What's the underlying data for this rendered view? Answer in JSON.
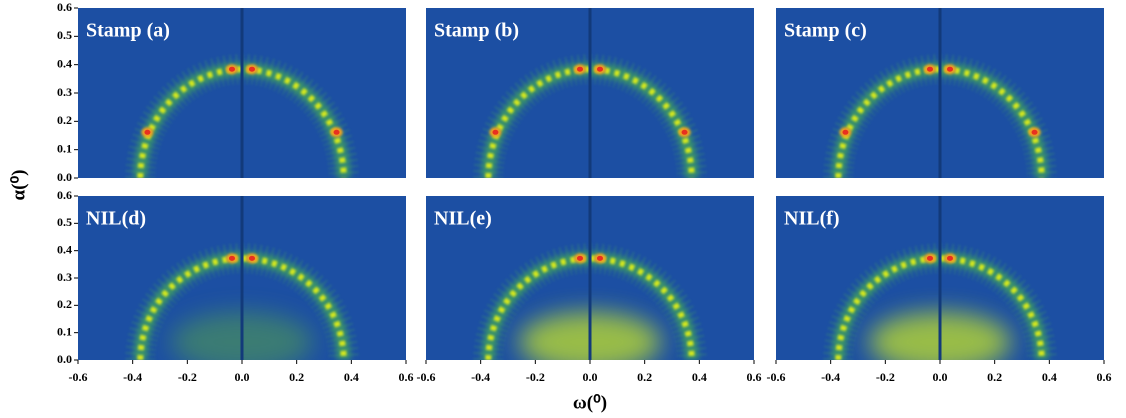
{
  "xlabel": "ω(⁰)",
  "ylabel": "α(⁰)",
  "chart_data": [
    {
      "type": "heatmap",
      "title": "Stamp (a)",
      "xlim": [
        -0.6,
        0.6
      ],
      "ylim": [
        0,
        0.6
      ],
      "yticks": [
        {
          "value": 0,
          "label": "0.0"
        },
        0.1,
        0.2,
        0.3,
        0.4,
        0.5,
        0.6
      ]
    },
    {
      "type": "heatmap",
      "title": "Stamp (b)",
      "xlim": [
        -0.6,
        0.6
      ],
      "ylim": [
        0,
        0.6
      ]
    },
    {
      "type": "heatmap",
      "title": "Stamp (c)",
      "xlim": [
        -0.6,
        0.6
      ],
      "ylim": [
        0,
        0.6
      ]
    },
    {
      "type": "heatmap",
      "title": "NIL(d)",
      "xlim": [
        -0.6,
        0.6
      ],
      "ylim": [
        0,
        0.6
      ],
      "xticks": [
        -0.6,
        -0.4,
        -0.2,
        {
          "value": 0,
          "label": "0.0"
        },
        0.2,
        0.4,
        0.6
      ],
      "yticks": [
        {
          "value": 0,
          "label": "0.0"
        },
        0.1,
        0.2,
        0.3,
        0.4,
        0.5,
        0.6
      ]
    },
    {
      "type": "heatmap",
      "title": "NIL(e)",
      "xlim": [
        -0.6,
        0.6
      ],
      "ylim": [
        0,
        0.6
      ],
      "xticks": [
        -0.6,
        -0.4,
        -0.2,
        {
          "value": 0,
          "label": "0.0"
        },
        0.2,
        0.4,
        0.6
      ]
    },
    {
      "type": "heatmap",
      "title": "NIL(f)",
      "xlim": [
        -0.6,
        0.6
      ],
      "ylim": [
        0,
        0.6
      ],
      "xticks": [
        -0.6,
        -0.4,
        -0.2,
        {
          "value": 0,
          "label": "0.0"
        },
        0.2,
        0.4,
        0.6
      ]
    }
  ]
}
